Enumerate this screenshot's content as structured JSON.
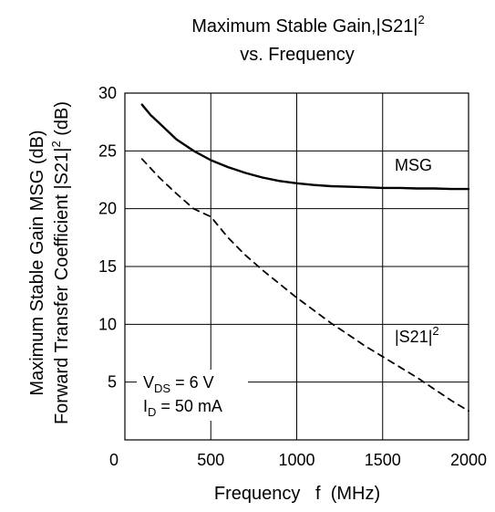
{
  "chart_data": {
    "type": "line",
    "title": {
      "line1_main": "Maximum Stable Gain,|S21|",
      "line1_sup": "2",
      "line2": "vs. Frequency"
    },
    "xlabel": "Frequency   f  (MHz)",
    "ylabel": {
      "line1": "Maximum Stable Gain   MSG  (dB)",
      "line2_main": "Forward Transfer Coefficient   |S21|",
      "line2_sup": "2",
      "line2_tail": "  (dB)"
    },
    "xlim": [
      0,
      2000
    ],
    "ylim": [
      0,
      30
    ],
    "x_ticks": [
      0,
      500,
      1000,
      1500,
      2000
    ],
    "y_ticks": [
      5,
      10,
      15,
      20,
      25,
      30
    ],
    "x_tick_labels": [
      "0",
      "500",
      "1000",
      "1500",
      "2000"
    ],
    "y_tick_labels": [
      "5",
      "10",
      "15",
      "20",
      "25",
      "30"
    ],
    "grid": true,
    "series": [
      {
        "name": "MSG",
        "style": "solid",
        "x": [
          100,
          150,
          200,
          300,
          400,
          500,
          600,
          700,
          800,
          900,
          1000,
          1100,
          1200,
          1300,
          1400,
          1500,
          1600,
          1700,
          1800,
          1900,
          2000
        ],
        "y": [
          29.0,
          28.1,
          27.4,
          26.0,
          25.0,
          24.2,
          23.6,
          23.1,
          22.7,
          22.4,
          22.2,
          22.05,
          21.95,
          21.9,
          21.85,
          21.8,
          21.8,
          21.75,
          21.75,
          21.7,
          21.7
        ]
      },
      {
        "name": "|S21|²",
        "style": "dashed",
        "x": [
          100,
          200,
          300,
          400,
          500,
          600,
          700,
          800,
          900,
          1000,
          1100,
          1200,
          1300,
          1400,
          1500,
          1600,
          1700,
          1800,
          1900,
          2000
        ],
        "y": [
          24.3,
          22.7,
          21.3,
          20.0,
          19.3,
          17.5,
          16.0,
          14.7,
          13.5,
          12.3,
          11.2,
          10.1,
          9.1,
          8.1,
          7.2,
          6.3,
          5.4,
          4.4,
          3.4,
          2.5
        ]
      }
    ],
    "series_labels": {
      "msg": "MSG",
      "s21_main": "|S21|",
      "s21_sup": "2"
    },
    "annotations": {
      "vds_main": "V",
      "vds_sub": "DS",
      "vds_tail": " = 6 V",
      "id_main": "I",
      "id_sub": "D",
      "id_tail": " = 50 mA"
    },
    "colors": {
      "line": "#000000",
      "grid": "#000000",
      "background": "#ffffff"
    }
  }
}
